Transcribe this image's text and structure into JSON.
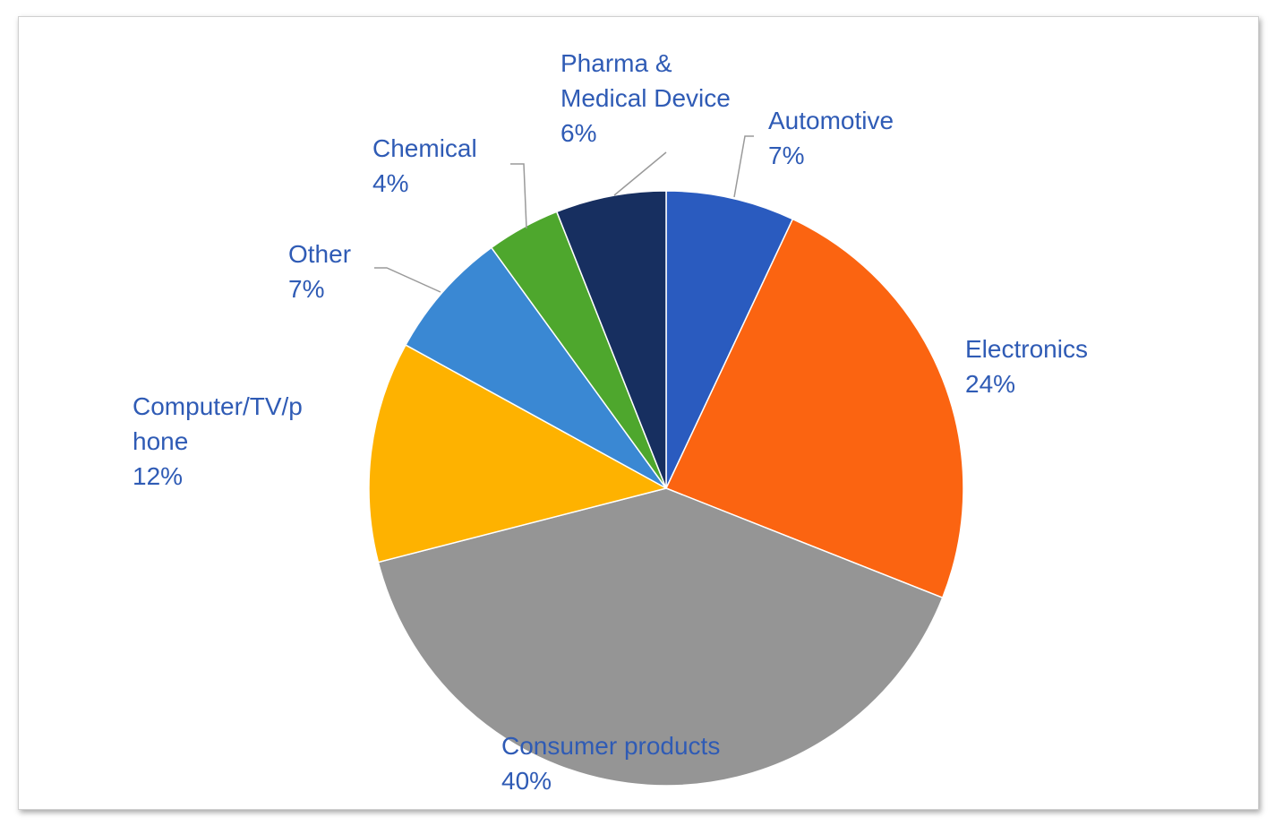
{
  "chart_data": {
    "type": "pie",
    "start_angle_deg": 0,
    "direction": "clockwise",
    "slices": [
      {
        "label_lines": [
          "Automotive"
        ],
        "pct_label": "7%",
        "value": 7,
        "color": "#2a5bbf"
      },
      {
        "label_lines": [
          "Electronics"
        ],
        "pct_label": "24%",
        "value": 24,
        "color": "#fb6411"
      },
      {
        "label_lines": [
          "Consumer products"
        ],
        "pct_label": "40%",
        "value": 40,
        "color": "#959595"
      },
      {
        "label_lines": [
          "Computer/TV/p",
          "hone"
        ],
        "pct_label": "12%",
        "value": 12,
        "color": "#feb200"
      },
      {
        "label_lines": [
          "Other"
        ],
        "pct_label": "7%",
        "value": 7,
        "color": "#3a88d3"
      },
      {
        "label_lines": [
          "Chemical"
        ],
        "pct_label": "4%",
        "value": 4,
        "color": "#4ea72d"
      },
      {
        "label_lines": [
          "Pharma &",
          "Medical Device"
        ],
        "pct_label": "6%",
        "value": 6,
        "color": "#172f60"
      }
    ],
    "legend": "none (data labels with leader lines)"
  },
  "colors": {
    "label_text": "#2f5bb5",
    "leader_line": "#9a9a9a",
    "slice_border": "#ffffff"
  }
}
